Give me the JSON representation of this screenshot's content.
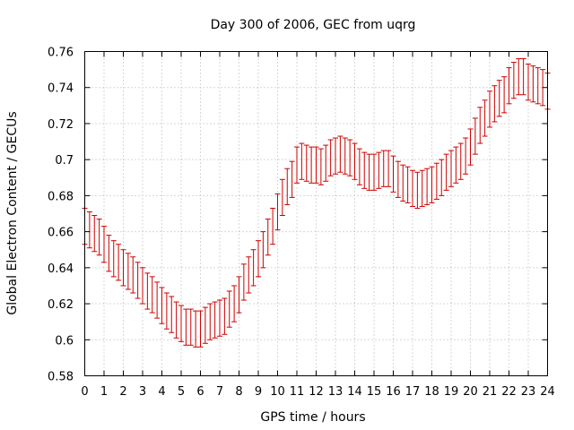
{
  "chart_data": {
    "type": "scatter",
    "title": "Day 300 of 2006, GEC from uqrg",
    "xlabel": "GPS time / hours",
    "ylabel": "Global Electron Content / GECUs",
    "xlim": [
      0,
      24
    ],
    "ylim": [
      0.58,
      0.76
    ],
    "xticks": [
      0,
      1,
      2,
      3,
      4,
      5,
      6,
      7,
      8,
      9,
      10,
      11,
      12,
      13,
      14,
      15,
      16,
      17,
      18,
      19,
      20,
      21,
      22,
      23,
      24
    ],
    "xtick_labels": [
      "0",
      "1",
      "2",
      "3",
      "4",
      "5",
      "6",
      "7",
      "8",
      "9",
      "10",
      "11",
      "12",
      "13",
      "14",
      "15",
      "16",
      "17",
      "18",
      "19",
      "20",
      "21",
      "22",
      "23",
      "24"
    ],
    "yticks": [
      0.58,
      0.6,
      0.62,
      0.64,
      0.66,
      0.68,
      0.7,
      0.72,
      0.74,
      0.76
    ],
    "ytick_labels": [
      "0.58",
      "0.6",
      "0.62",
      "0.64",
      "0.66",
      "0.68",
      "0.7",
      "0.72",
      "0.74",
      "0.76"
    ],
    "grid": true,
    "grid_style": "dotted",
    "error_bar_half_height": 0.01,
    "series": [
      {
        "color": "#cc0000",
        "style": "errorbars",
        "x": [
          0,
          0.25,
          0.5,
          0.75,
          1,
          1.25,
          1.5,
          1.75,
          2,
          2.25,
          2.5,
          2.75,
          3,
          3.25,
          3.5,
          3.75,
          4,
          4.25,
          4.5,
          4.75,
          5,
          5.25,
          5.5,
          5.75,
          6,
          6.25,
          6.5,
          6.75,
          7,
          7.25,
          7.5,
          7.75,
          8,
          8.25,
          8.5,
          8.75,
          9,
          9.25,
          9.5,
          9.75,
          10,
          10.25,
          10.5,
          10.75,
          11,
          11.25,
          11.5,
          11.75,
          12,
          12.25,
          12.5,
          12.75,
          13,
          13.25,
          13.5,
          13.75,
          14,
          14.25,
          14.5,
          14.75,
          15,
          15.25,
          15.5,
          15.75,
          16,
          16.25,
          16.5,
          16.75,
          17,
          17.25,
          17.5,
          17.75,
          18,
          18.25,
          18.5,
          18.75,
          19,
          19.25,
          19.5,
          19.75,
          20,
          20.25,
          20.5,
          20.75,
          21,
          21.25,
          21.5,
          21.75,
          22,
          22.25,
          22.5,
          22.75,
          23,
          23.25,
          23.5,
          23.75,
          24
        ],
        "y": [
          0.663,
          0.661,
          0.659,
          0.657,
          0.653,
          0.648,
          0.645,
          0.643,
          0.64,
          0.638,
          0.636,
          0.633,
          0.63,
          0.627,
          0.625,
          0.622,
          0.619,
          0.616,
          0.614,
          0.611,
          0.609,
          0.607,
          0.607,
          0.606,
          0.606,
          0.608,
          0.61,
          0.611,
          0.612,
          0.613,
          0.617,
          0.62,
          0.625,
          0.632,
          0.636,
          0.64,
          0.645,
          0.65,
          0.657,
          0.663,
          0.671,
          0.679,
          0.685,
          0.689,
          0.697,
          0.699,
          0.698,
          0.697,
          0.697,
          0.696,
          0.698,
          0.701,
          0.702,
          0.703,
          0.702,
          0.701,
          0.699,
          0.696,
          0.694,
          0.693,
          0.693,
          0.694,
          0.695,
          0.695,
          0.692,
          0.689,
          0.687,
          0.686,
          0.684,
          0.683,
          0.684,
          0.685,
          0.686,
          0.688,
          0.69,
          0.693,
          0.695,
          0.697,
          0.699,
          0.702,
          0.707,
          0.713,
          0.719,
          0.723,
          0.728,
          0.731,
          0.734,
          0.736,
          0.741,
          0.744,
          0.746,
          0.746,
          0.743,
          0.742,
          0.741,
          0.74,
          0.738
        ]
      }
    ]
  }
}
